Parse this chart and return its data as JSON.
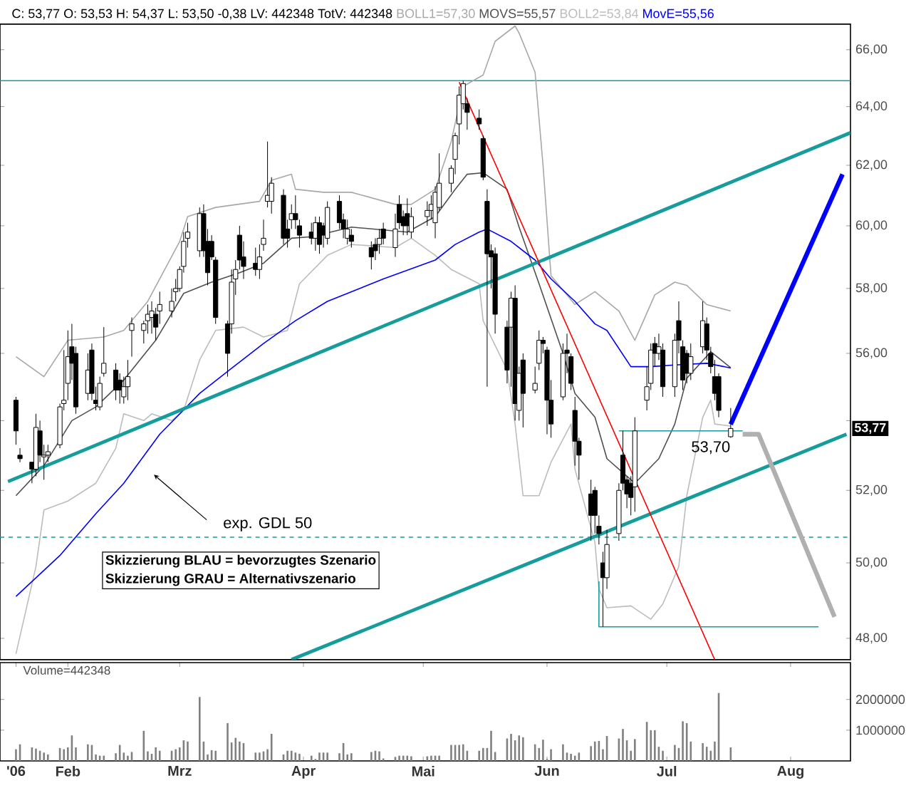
{
  "chart_data": [
    {
      "type": "candlestick",
      "title": "C: 53,77 O: 53,53 H: 54,37 L: 53,50 -0,38 LV: 442348 TotV: 442348",
      "x": [
        "2006-01-19",
        "2006-01-20",
        "2006-01-23",
        "2006-01-24",
        "2006-01-25",
        "2006-01-26",
        "2006-01-27",
        "2006-01-30",
        "2006-01-31",
        "2006-02-01",
        "2006-02-02",
        "2006-02-03",
        "2006-02-06",
        "2006-02-07",
        "2006-02-08",
        "2006-02-09",
        "2006-02-10",
        "2006-02-13",
        "2006-02-14",
        "2006-02-15",
        "2006-02-16",
        "2006-02-17",
        "2006-02-20",
        "2006-02-21",
        "2006-02-22",
        "2006-02-23",
        "2006-02-24",
        "2006-02-27",
        "2006-02-28",
        "2006-03-01",
        "2006-03-02",
        "2006-03-03",
        "2006-03-06",
        "2006-03-07",
        "2006-03-08",
        "2006-03-09",
        "2006-03-10",
        "2006-03-13",
        "2006-03-14",
        "2006-03-15",
        "2006-03-16",
        "2006-03-17",
        "2006-03-20",
        "2006-03-21",
        "2006-03-22",
        "2006-03-23",
        "2006-03-24",
        "2006-03-27",
        "2006-03-28",
        "2006-03-29",
        "2006-03-30",
        "2006-03-31",
        "2006-04-03",
        "2006-04-04",
        "2006-04-05",
        "2006-04-06",
        "2006-04-07",
        "2006-04-10",
        "2006-04-11",
        "2006-04-12",
        "2006-04-13",
        "2006-04-18",
        "2006-04-19",
        "2006-04-20",
        "2006-04-21",
        "2006-04-24",
        "2006-04-25",
        "2006-04-26",
        "2006-04-27",
        "2006-04-28",
        "2006-05-02",
        "2006-05-03",
        "2006-05-04",
        "2006-05-05",
        "2006-05-08",
        "2006-05-09",
        "2006-05-10",
        "2006-05-11",
        "2006-05-12",
        "2006-05-15",
        "2006-05-16",
        "2006-05-17",
        "2006-05-18",
        "2006-05-19",
        "2006-05-22",
        "2006-05-23",
        "2006-05-24",
        "2006-05-25",
        "2006-05-26",
        "2006-05-29",
        "2006-05-30",
        "2006-05-31",
        "2006-06-01",
        "2006-06-02",
        "2006-06-05",
        "2006-06-06",
        "2006-06-07",
        "2006-06-08",
        "2006-06-09",
        "2006-06-12",
        "2006-06-13",
        "2006-06-14",
        "2006-06-15",
        "2006-06-16",
        "2006-06-19",
        "2006-06-20",
        "2006-06-21",
        "2006-06-22",
        "2006-06-23",
        "2006-06-26",
        "2006-06-27",
        "2006-06-28",
        "2006-06-29",
        "2006-06-30",
        "2006-07-03",
        "2006-07-04",
        "2006-07-05",
        "2006-07-06",
        "2006-07-07",
        "2006-07-10",
        "2006-07-11",
        "2006-07-12",
        "2006-07-13",
        "2006-07-14",
        "2006-07-17"
      ],
      "ohlc": [
        [
          54.6,
          54.7,
          53.3,
          53.7
        ],
        [
          53.0,
          53.2,
          52.8,
          52.9
        ],
        [
          52.8,
          52.8,
          52.2,
          52.6
        ],
        [
          52.6,
          54.2,
          52.4,
          53.8
        ],
        [
          53.7,
          54.0,
          52.8,
          53.0
        ],
        [
          52.95,
          53.3,
          52.3,
          53.0
        ],
        [
          53.0,
          53.3,
          52.8,
          53.1
        ],
        [
          53.3,
          54.5,
          53.2,
          54.4
        ],
        [
          54.5,
          56.1,
          54.3,
          54.6
        ],
        [
          55.1,
          56.7,
          54.6,
          55.9
        ],
        [
          56.2,
          56.9,
          55.2,
          55.7
        ],
        [
          56.0,
          56.2,
          54.2,
          54.4
        ],
        [
          54.8,
          56.0,
          54.6,
          55.5
        ],
        [
          56.1,
          56.3,
          54.6,
          54.8
        ],
        [
          54.6,
          55.0,
          54.3,
          54.5
        ],
        [
          54.4,
          55.3,
          54.3,
          55.1
        ],
        [
          55.4,
          56.8,
          55.3,
          55.7
        ],
        [
          55.5,
          55.7,
          54.6,
          54.9
        ],
        [
          55.2,
          55.4,
          54.5,
          54.9
        ],
        [
          54.7,
          55.3,
          54.5,
          55.0
        ],
        [
          55.0,
          55.8,
          54.6,
          55.3
        ],
        [
          56.7,
          57.1,
          55.9,
          56.9
        ],
        [
          56.7,
          57.0,
          56.3,
          56.9
        ],
        [
          57.0,
          57.5,
          56.6,
          57.2
        ],
        [
          57.1,
          57.6,
          56.6,
          57.3
        ],
        [
          57.2,
          57.4,
          56.4,
          56.8
        ],
        [
          57.3,
          57.9,
          56.9,
          57.5
        ],
        [
          57.3,
          58.0,
          57.1,
          57.6
        ],
        [
          57.9,
          58.3,
          57.6,
          58.0
        ],
        [
          58.0,
          58.7,
          57.9,
          58.6
        ],
        [
          58.7,
          59.8,
          58.5,
          59.5
        ],
        [
          59.6,
          60.1,
          59.3,
          59.8
        ],
        [
          59.2,
          60.6,
          59.0,
          60.4
        ],
        [
          60.4,
          60.7,
          59.0,
          59.2
        ],
        [
          59.5,
          59.9,
          58.1,
          58.5
        ],
        [
          59.5,
          59.7,
          58.9,
          59.0
        ],
        [
          58.9,
          59.0,
          56.9,
          57.1
        ],
        [
          56.9,
          57.0,
          55.3,
          56.0
        ],
        [
          56.9,
          58.6,
          56.6,
          58.2
        ],
        [
          58.3,
          58.9,
          57.8,
          58.6
        ],
        [
          59.7,
          60.0,
          58.6,
          58.9
        ],
        [
          59.0,
          59.5,
          58.3,
          58.7
        ],
        [
          58.8,
          59.3,
          58.4,
          58.6
        ],
        [
          58.6,
          59.4,
          58.3,
          59.0
        ],
        [
          59.4,
          60.2,
          59.2,
          59.6
        ],
        [
          60.8,
          62.8,
          60.6,
          61.0
        ],
        [
          60.8,
          61.6,
          60.4,
          61.4
        ],
        [
          61.0,
          61.2,
          59.4,
          59.6
        ],
        [
          59.9,
          60.2,
          59.3,
          59.6
        ],
        [
          60.2,
          60.7,
          59.9,
          60.4
        ],
        [
          60.4,
          61.0,
          59.9,
          60.2
        ],
        [
          60.0,
          60.2,
          59.3,
          59.7
        ],
        [
          59.8,
          60.1,
          59.4,
          59.6
        ],
        [
          59.6,
          60.3,
          59.2,
          60.1
        ],
        [
          60.1,
          60.3,
          59.1,
          59.4
        ],
        [
          60.0,
          60.1,
          59.3,
          59.7
        ],
        [
          59.6,
          60.8,
          59.4,
          60.6
        ],
        [
          60.8,
          61.0,
          59.9,
          60.1
        ],
        [
          60.2,
          60.4,
          59.6,
          59.9
        ],
        [
          59.6,
          60.2,
          59.4,
          59.9
        ],
        [
          59.7,
          59.9,
          59.3,
          59.5
        ],
        [
          59.3,
          59.5,
          58.6,
          59.0
        ],
        [
          59.4,
          59.6,
          58.9,
          59.2
        ],
        [
          59.4,
          59.9,
          59.1,
          59.6
        ],
        [
          59.9,
          60.1,
          59.4,
          59.6
        ],
        [
          59.3,
          60.4,
          59.0,
          59.9
        ],
        [
          60.7,
          61.0,
          59.9,
          60.1
        ],
        [
          60.3,
          60.5,
          59.7,
          60.0
        ],
        [
          60.4,
          60.9,
          59.7,
          60.0
        ],
        [
          59.8,
          60.6,
          59.6,
          60.3
        ],
        [
          60.3,
          60.8,
          60.0,
          60.5
        ],
        [
          60.5,
          61.0,
          60.2,
          60.7
        ],
        [
          60.1,
          61.3,
          59.6,
          61.1
        ],
        [
          60.6,
          62.4,
          60.5,
          61.4
        ],
        [
          61.4,
          62.0,
          61.1,
          61.9
        ],
        [
          62.2,
          63.1,
          61.7,
          63.0
        ],
        [
          63.4,
          64.7,
          62.7,
          64.4
        ],
        [
          64.1,
          64.9,
          63.9,
          64.8
        ],
        [
          64.1,
          64.3,
          63.2,
          63.8
        ],
        [
          63.6,
          63.9,
          63.2,
          63.4
        ],
        [
          62.9,
          63.0,
          61.5,
          61.6
        ],
        [
          60.8,
          61.2,
          55.0,
          59.1
        ],
        [
          59.2,
          59.4,
          58.0,
          59.0
        ],
        [
          59.1,
          59.3,
          56.6,
          57.2
        ],
        [
          56.8,
          57.0,
          55.1,
          55.5
        ],
        [
          56.8,
          57.9,
          55.0,
          57.7
        ],
        [
          57.7,
          58.1,
          54.0,
          54.5
        ],
        [
          54.3,
          55.6,
          54.0,
          55.4
        ],
        [
          55.8,
          56.0,
          53.8,
          54.8
        ],
        [
          54.9,
          55.6,
          54.8,
          55.1
        ],
        [
          55.7,
          56.7,
          55.5,
          56.4
        ],
        [
          56.4,
          56.5,
          56.0,
          56.3
        ],
        [
          56.1,
          56.2,
          53.6,
          54.6
        ],
        [
          54.6,
          55.2,
          53.5,
          53.9
        ],
        [
          54.7,
          56.3,
          54.6,
          56.0
        ],
        [
          56.1,
          56.6,
          55.4,
          56.0
        ],
        [
          55.9,
          56.0,
          54.9,
          55.1
        ],
        [
          54.3,
          54.7,
          52.7,
          53.4
        ],
        [
          53.4,
          53.5,
          52.3,
          53.0
        ],
        [
          51.9,
          52.3,
          50.6,
          51.3
        ],
        [
          52.0,
          52.1,
          50.8,
          51.3
        ],
        [
          51.0,
          51.3,
          50.5,
          50.8
        ],
        [
          50.0,
          50.3,
          48.3,
          49.6
        ],
        [
          49.6,
          50.9,
          49.3,
          50.5
        ],
        [
          50.8,
          52.2,
          50.6,
          52.0
        ],
        [
          53.0,
          53.7,
          52.0,
          52.2
        ],
        [
          52.3,
          52.4,
          51.5,
          51.9
        ],
        [
          52.2,
          52.4,
          51.3,
          51.8
        ],
        [
          52.1,
          54.1,
          51.4,
          53.7
        ],
        [
          54.6,
          55.6,
          54.3,
          55.0
        ],
        [
          55.1,
          56.3,
          54.9,
          56.1
        ],
        [
          56.3,
          56.5,
          55.6,
          56.0
        ],
        [
          56.0,
          56.6,
          55.8,
          56.2
        ],
        [
          56.1,
          56.3,
          54.7,
          55.0
        ],
        [
          55.0,
          56.6,
          54.7,
          56.4
        ],
        [
          57.0,
          57.6,
          56.0,
          56.4
        ],
        [
          56.2,
          56.4,
          54.9,
          55.2
        ],
        [
          56.0,
          56.1,
          55.1,
          55.4
        ],
        [
          55.4,
          56.3,
          55.2,
          55.9
        ],
        [
          56.2,
          57.6,
          56.0,
          57.0
        ],
        [
          56.9,
          57.1,
          55.8,
          56.1
        ],
        [
          56.0,
          56.2,
          55.4,
          55.6
        ],
        [
          55.3,
          55.8,
          54.6,
          54.8
        ],
        [
          55.3,
          55.4,
          54.1,
          54.3
        ],
        [
          53.53,
          54.37,
          53.5,
          53.77
        ]
      ],
      "series": [
        {
          "type": "line",
          "name": "BOLL1=57,30",
          "color": "#a8a8a8",
          "x": [
            "2006-01-19",
            "2006-01-26",
            "2006-02-01",
            "2006-02-10",
            "2006-02-15",
            "2006-02-21",
            "2006-03-01",
            "2006-03-03",
            "2006-03-10",
            "2006-03-21",
            "2006-03-24",
            "2006-03-29",
            "2006-03-30",
            "2006-04-06",
            "2006-04-13",
            "2006-04-24",
            "2006-04-28",
            "2006-05-04",
            "2006-05-08",
            "2006-05-11",
            "2006-05-16",
            "2006-05-19",
            "2006-05-24",
            "2006-05-25",
            "2006-05-29",
            "2006-05-31",
            "2006-06-02",
            "2006-06-08",
            "2006-06-13",
            "2006-06-19",
            "2006-06-23",
            "2006-06-28",
            "2006-07-03",
            "2006-07-06",
            "2006-07-11",
            "2006-07-17"
          ],
          "values": [
            55.9,
            55.3,
            56.4,
            56.5,
            56.7,
            57.6,
            59.5,
            60.3,
            60.6,
            60.8,
            61.5,
            61.7,
            61.2,
            61.1,
            61.1,
            60.7,
            60.7,
            61.2,
            62.8,
            64.7,
            65.1,
            66.3,
            66.85,
            66.6,
            65.2,
            62.0,
            58.4,
            57.5,
            57.9,
            57.3,
            56.4,
            57.8,
            58.2,
            58.1,
            57.5,
            57.3
          ]
        },
        {
          "type": "line",
          "name": "MOVS=55,57",
          "color": "#505050",
          "x": [
            "2006-01-19",
            "2006-01-26",
            "2006-02-02",
            "2006-02-08",
            "2006-02-15",
            "2006-02-23",
            "2006-03-02",
            "2006-03-09",
            "2006-03-16",
            "2006-03-22",
            "2006-03-29",
            "2006-04-03",
            "2006-04-13",
            "2006-04-27",
            "2006-05-04",
            "2006-05-09",
            "2006-05-12",
            "2006-05-16",
            "2006-05-22",
            "2006-05-25",
            "2006-05-30",
            "2006-06-05",
            "2006-06-08",
            "2006-06-13",
            "2006-06-16",
            "2006-06-21",
            "2006-06-23",
            "2006-06-29",
            "2006-07-03",
            "2006-07-06",
            "2006-07-12",
            "2006-07-17"
          ],
          "values": [
            51.85,
            52.7,
            54.0,
            54.4,
            55.2,
            56.4,
            57.85,
            58.2,
            58.5,
            58.8,
            59.6,
            59.65,
            59.96,
            59.8,
            60.3,
            61.2,
            61.7,
            61.75,
            61.2,
            59.96,
            58.15,
            56.0,
            54.8,
            54.1,
            52.9,
            52.4,
            52.2,
            52.9,
            53.9,
            55.25,
            56.05,
            55.57
          ]
        },
        {
          "type": "line",
          "name": "BOLL2=53,84",
          "color": "#bcbcbc",
          "x": [
            "2006-01-19",
            "2006-01-24",
            "2006-01-26",
            "2006-02-01",
            "2006-02-08",
            "2006-02-13",
            "2006-02-15",
            "2006-02-20",
            "2006-02-22",
            "2006-02-27",
            "2006-03-02",
            "2006-03-06",
            "2006-03-10",
            "2006-03-17",
            "2006-03-22",
            "2006-03-28",
            "2006-03-31",
            "2006-04-07",
            "2006-04-13",
            "2006-04-24",
            "2006-04-28",
            "2006-05-04",
            "2006-05-08",
            "2006-05-15",
            "2006-05-16",
            "2006-05-22",
            "2006-05-24",
            "2006-05-26",
            "2006-05-30",
            "2006-06-02",
            "2006-06-07",
            "2006-06-08",
            "2006-06-13",
            "2006-06-14",
            "2006-06-16",
            "2006-06-22",
            "2006-06-27",
            "2006-06-30",
            "2006-07-04",
            "2006-07-06",
            "2006-07-10",
            "2006-07-12",
            "2006-07-13",
            "2006-07-17"
          ],
          "values": [
            47.6,
            49.9,
            51.45,
            51.7,
            52.2,
            53.2,
            54.2,
            54.0,
            54.2,
            54.0,
            54.3,
            55.8,
            56.7,
            56.8,
            56.5,
            56.7,
            58.15,
            59.05,
            59.4,
            59.3,
            59.6,
            59.05,
            58.6,
            58.15,
            57.0,
            55.5,
            53.9,
            51.85,
            51.85,
            52.8,
            53.9,
            52.6,
            50.55,
            49.3,
            48.8,
            48.85,
            48.5,
            48.9,
            49.9,
            51.85,
            54.1,
            54.6,
            53.9,
            53.84
          ]
        },
        {
          "type": "line",
          "name": "MovE=55,56",
          "color": "#0000ff",
          "x": [
            "2006-01-19",
            "2006-01-30",
            "2006-02-08",
            "2006-02-15",
            "2006-02-24",
            "2006-03-06",
            "2006-03-14",
            "2006-03-22",
            "2006-03-30",
            "2006-04-07",
            "2006-04-21",
            "2006-05-04",
            "2006-05-09",
            "2006-05-15",
            "2006-05-17",
            "2006-05-23",
            "2006-05-29",
            "2006-06-02",
            "2006-06-08",
            "2006-06-13",
            "2006-06-16",
            "2006-06-22",
            "2006-06-27",
            "2006-07-03",
            "2006-07-11",
            "2006-07-17"
          ],
          "values": [
            49.1,
            50.2,
            51.35,
            52.2,
            53.6,
            54.8,
            55.55,
            56.3,
            57.0,
            57.6,
            58.3,
            58.9,
            59.4,
            59.8,
            59.9,
            59.5,
            58.9,
            58.3,
            57.6,
            56.9,
            56.7,
            55.6,
            55.6,
            55.65,
            55.7,
            55.56
          ]
        },
        {
          "type": "line",
          "color": "#169c9c",
          "x": [
            "2006-01-17",
            "2006-08-16"
          ],
          "values": [
            52.25,
            63.1
          ]
        },
        {
          "type": "line",
          "color": "#169c9c",
          "x": [
            "2006-03-29",
            "2006-08-15"
          ],
          "values": [
            47.45,
            53.6
          ]
        },
        {
          "type": "line",
          "color": "#ff0000",
          "x": [
            "2006-05-10",
            "2006-07-13"
          ],
          "values": [
            64.85,
            47.45
          ]
        },
        {
          "type": "line",
          "color": "#169c9c",
          "x": [
            "2006-06-19",
            "2006-07-20"
          ],
          "values": [
            53.7,
            53.7
          ]
        },
        {
          "type": "line",
          "color": "#169c9c",
          "x": [
            "2006-06-14",
            "2006-06-14",
            "2006-08-08"
          ],
          "values": [
            49.5,
            48.3,
            48.3
          ]
        },
        {
          "type": "line",
          "color": "#0000ff",
          "x": [
            "2006-07-17",
            "2006-08-14"
          ],
          "values": [
            53.89,
            61.7
          ]
        },
        {
          "type": "line",
          "color": "#b0b0b0",
          "x": [
            "2006-07-20",
            "2006-07-24",
            "2006-08-12"
          ],
          "values": [
            53.6,
            53.6,
            48.56
          ]
        }
      ],
      "xlim": [
        "2006-01-15",
        "2006-08-16"
      ],
      "ylim": [
        47.45,
        66.92
      ],
      "yticks": [
        {
          "value": 48,
          "label": "48,00"
        },
        {
          "value": 50,
          "label": "50,00"
        },
        {
          "value": 52,
          "label": "52,00"
        },
        {
          "value": 54,
          "label": null
        },
        {
          "value": 56,
          "label": "56,00"
        },
        {
          "value": 58,
          "label": "58,00"
        },
        {
          "value": 60,
          "label": "60,00"
        },
        {
          "value": 62,
          "label": "62,00"
        },
        {
          "value": 64,
          "label": "64,00"
        },
        {
          "value": 66,
          "label": "66,00"
        }
      ],
      "log": true,
      "tick_labels": "y",
      "ref_lines": [
        {
          "axis": "y",
          "value": 64.9,
          "color": "#169c9c"
        },
        {
          "axis": "y",
          "value": 50.7,
          "color": "#169c9c",
          "line_style": "dashed"
        }
      ],
      "annotations": [
        "exp. GDL 50",
        "Skizzierung BLAU = bevorzugtes Szenario",
        "Skizzierung GRAU = Alternativszenario",
        {
          "text": "53,70",
          "x": "2006-07-12",
          "y": 53.7
        },
        {
          "text": "53,77",
          "y": 53.77
        }
      ]
    },
    {
      "type": "bar",
      "title": "Volume=442348",
      "x": [
        "2006-01-19",
        "2006-01-20",
        "2006-01-23",
        "2006-01-24",
        "2006-01-25",
        "2006-01-26",
        "2006-01-27",
        "2006-01-30",
        "2006-01-31",
        "2006-02-01",
        "2006-02-02",
        "2006-02-03",
        "2006-02-06",
        "2006-02-07",
        "2006-02-08",
        "2006-02-09",
        "2006-02-10",
        "2006-02-13",
        "2006-02-14",
        "2006-02-15",
        "2006-02-16",
        "2006-02-17",
        "2006-02-20",
        "2006-02-21",
        "2006-02-22",
        "2006-02-23",
        "2006-02-24",
        "2006-02-27",
        "2006-02-28",
        "2006-03-01",
        "2006-03-02",
        "2006-03-03",
        "2006-03-06",
        "2006-03-07",
        "2006-03-08",
        "2006-03-09",
        "2006-03-10",
        "2006-03-13",
        "2006-03-14",
        "2006-03-15",
        "2006-03-16",
        "2006-03-17",
        "2006-03-20",
        "2006-03-21",
        "2006-03-22",
        "2006-03-23",
        "2006-03-24",
        "2006-03-27",
        "2006-03-28",
        "2006-03-29",
        "2006-03-30",
        "2006-03-31",
        "2006-04-03",
        "2006-04-04",
        "2006-04-05",
        "2006-04-06",
        "2006-04-07",
        "2006-04-10",
        "2006-04-11",
        "2006-04-12",
        "2006-04-13",
        "2006-04-18",
        "2006-04-19",
        "2006-04-20",
        "2006-04-21",
        "2006-04-24",
        "2006-04-25",
        "2006-04-26",
        "2006-04-27",
        "2006-04-28",
        "2006-05-02",
        "2006-05-03",
        "2006-05-04",
        "2006-05-05",
        "2006-05-08",
        "2006-05-09",
        "2006-05-10",
        "2006-05-11",
        "2006-05-12",
        "2006-05-15",
        "2006-05-16",
        "2006-05-17",
        "2006-05-18",
        "2006-05-19",
        "2006-05-22",
        "2006-05-23",
        "2006-05-24",
        "2006-05-25",
        "2006-05-26",
        "2006-05-29",
        "2006-05-30",
        "2006-05-31",
        "2006-06-01",
        "2006-06-02",
        "2006-06-05",
        "2006-06-06",
        "2006-06-07",
        "2006-06-08",
        "2006-06-09",
        "2006-06-12",
        "2006-06-13",
        "2006-06-14",
        "2006-06-15",
        "2006-06-16",
        "2006-06-19",
        "2006-06-20",
        "2006-06-21",
        "2006-06-22",
        "2006-06-23",
        "2006-06-26",
        "2006-06-27",
        "2006-06-28",
        "2006-06-29",
        "2006-06-30",
        "2006-07-03",
        "2006-07-04",
        "2006-07-05",
        "2006-07-06",
        "2006-07-07",
        "2006-07-10",
        "2006-07-11",
        "2006-07-12",
        "2006-07-13",
        "2006-07-14",
        "2006-07-17"
      ],
      "values": [
        380000,
        540000,
        440000,
        400000,
        330000,
        270000,
        210000,
        420000,
        380000,
        440000,
        830000,
        440000,
        540000,
        520000,
        210000,
        170000,
        170000,
        250000,
        520000,
        270000,
        170000,
        290000,
        980000,
        310000,
        230000,
        440000,
        330000,
        330000,
        380000,
        440000,
        670000,
        630000,
        2080000,
        630000,
        210000,
        350000,
        330000,
        1230000,
        600000,
        750000,
        630000,
        580000,
        270000,
        270000,
        310000,
        380000,
        880000,
        210000,
        330000,
        330000,
        270000,
        230000,
        170000,
        60000,
        270000,
        270000,
        270000,
        250000,
        580000,
        210000,
        250000,
        290000,
        330000,
        310000,
        80000,
        130000,
        170000,
        170000,
        170000,
        150000,
        150000,
        170000,
        170000,
        170000,
        520000,
        520000,
        520000,
        540000,
        330000,
        330000,
        420000,
        420000,
        980000,
        290000,
        730000,
        880000,
        670000,
        830000,
        770000,
        540000,
        420000,
        690000,
        60000,
        380000,
        540000,
        270000,
        230000,
        170000,
        270000,
        480000,
        630000,
        650000,
        380000,
        810000,
        730000,
        1040000,
        670000,
        330000,
        710000,
        1270000,
        1000000,
        1000000,
        460000,
        330000,
        520000,
        420000,
        1290000,
        1230000,
        630000,
        580000,
        460000,
        330000,
        630000,
        2210000,
        440000
      ],
      "color": "#808080",
      "xlim": [
        "2006-01-15",
        "2006-08-16"
      ],
      "xticks": [
        {
          "value": "2006-01-19",
          "label": "'06"
        },
        {
          "value": "2006-02-01",
          "label": "Feb"
        },
        {
          "value": "2006-03-01",
          "label": "Mrz"
        },
        {
          "value": "2006-04-01",
          "label": "Apr"
        },
        {
          "value": "2006-05-01",
          "label": "Mai"
        },
        {
          "value": "2006-06-01",
          "label": "Jun"
        },
        {
          "value": "2006-07-01",
          "label": "Jul"
        },
        {
          "value": "2006-08-01",
          "label": "Aug"
        }
      ],
      "ylim": [
        0,
        3200000
      ],
      "yticks": [
        1000000,
        2000000
      ]
    }
  ]
}
